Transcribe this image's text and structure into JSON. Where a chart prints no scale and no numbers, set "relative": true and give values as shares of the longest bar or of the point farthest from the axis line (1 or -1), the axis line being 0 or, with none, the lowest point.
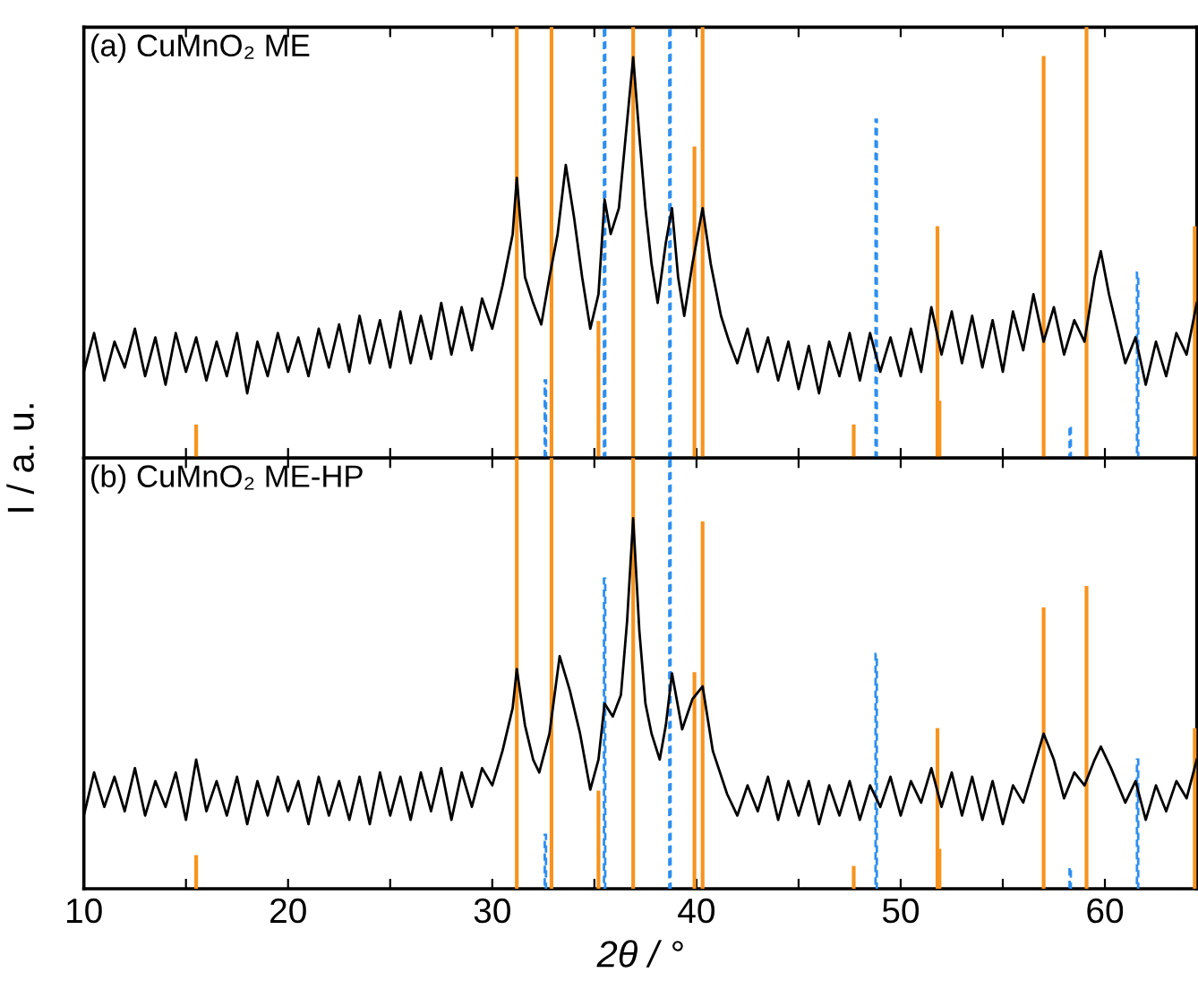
{
  "chart_data": [
    {
      "type": "line",
      "title": "(a) CuMnO₂ ME",
      "ylabel": "I / a. u.",
      "relative": true,
      "xlim": [
        10,
        64.5
      ],
      "xticks": [
        10,
        {
          "value": 15,
          "label": null
        },
        20,
        {
          "value": 25,
          "label": null
        },
        30,
        {
          "value": 35,
          "label": null
        },
        40,
        {
          "value": 45,
          "label": null
        },
        50,
        {
          "value": 55,
          "label": null
        },
        60
      ],
      "tick_labels": false,
      "grid": false,
      "legend": false,
      "series": [
        {
          "color": "#000000",
          "x": [
            10,
            10.5,
            11,
            11.5,
            12,
            12.5,
            13,
            13.5,
            14,
            14.5,
            15,
            15.5,
            16,
            16.5,
            17,
            17.5,
            18,
            18.5,
            19,
            19.5,
            20,
            20.5,
            21,
            21.5,
            22,
            22.5,
            23,
            23.5,
            24,
            24.5,
            25,
            25.5,
            26,
            26.5,
            27,
            27.5,
            28,
            28.5,
            29,
            29.5,
            30,
            30.5,
            31,
            31.2,
            31.6,
            32,
            32.4,
            32.8,
            33.2,
            33.6,
            34,
            34.4,
            34.8,
            35.2,
            35.5,
            35.8,
            36.2,
            36.6,
            36.9,
            37.2,
            37.5,
            37.8,
            38.1,
            38.5,
            38.8,
            39.1,
            39.4,
            39.8,
            40.3,
            40.7,
            41.2,
            41.6,
            42,
            42.5,
            43,
            43.5,
            44,
            44.5,
            45,
            45.5,
            46,
            46.5,
            47,
            47.5,
            48,
            48.5,
            49,
            49.5,
            50,
            50.5,
            51,
            51.5,
            52,
            52.5,
            53,
            53.5,
            54,
            54.5,
            55,
            55.5,
            56,
            56.5,
            57,
            57.5,
            58,
            58.5,
            59,
            59.5,
            59.8,
            60.2,
            60.6,
            61,
            61.5,
            62,
            62.5,
            63,
            63.5,
            64,
            64.5
          ],
          "values": [
            0.2,
            0.29,
            0.18,
            0.27,
            0.21,
            0.3,
            0.19,
            0.28,
            0.17,
            0.29,
            0.2,
            0.28,
            0.18,
            0.27,
            0.19,
            0.29,
            0.15,
            0.27,
            0.19,
            0.29,
            0.2,
            0.28,
            0.19,
            0.3,
            0.21,
            0.31,
            0.2,
            0.33,
            0.22,
            0.32,
            0.21,
            0.34,
            0.22,
            0.33,
            0.23,
            0.36,
            0.24,
            0.35,
            0.25,
            0.37,
            0.3,
            0.4,
            0.52,
            0.65,
            0.42,
            0.36,
            0.31,
            0.42,
            0.52,
            0.68,
            0.56,
            0.42,
            0.3,
            0.38,
            0.6,
            0.52,
            0.58,
            0.78,
            0.93,
            0.75,
            0.58,
            0.45,
            0.36,
            0.5,
            0.58,
            0.42,
            0.33,
            0.45,
            0.58,
            0.45,
            0.33,
            0.27,
            0.22,
            0.3,
            0.2,
            0.28,
            0.18,
            0.27,
            0.16,
            0.26,
            0.15,
            0.27,
            0.19,
            0.29,
            0.18,
            0.29,
            0.2,
            0.28,
            0.19,
            0.3,
            0.2,
            0.35,
            0.24,
            0.34,
            0.22,
            0.33,
            0.21,
            0.32,
            0.2,
            0.34,
            0.25,
            0.38,
            0.27,
            0.35,
            0.24,
            0.32,
            0.27,
            0.42,
            0.48,
            0.38,
            0.3,
            0.22,
            0.28,
            0.17,
            0.27,
            0.19,
            0.29,
            0.24,
            0.36
          ]
        },
        {
          "type": "bar",
          "color": "#f7931e",
          "line_style": "solid",
          "x": [
            15.5,
            31.2,
            32.9,
            35.2,
            36.9,
            39.9,
            40.3,
            47.7,
            51.8,
            51.9,
            57.0,
            59.1,
            64.4
          ],
          "values": [
            0.075,
            1,
            1,
            0.315,
            1,
            0.72,
            1,
            0.075,
            0.535,
            0.13,
            0.93,
            1,
            0.535
          ]
        },
        {
          "type": "bar",
          "color": "#2d8ff0",
          "line_style": "dashed",
          "x": [
            32.6,
            35.5,
            38.7,
            48.8,
            58.3,
            61.6
          ],
          "values": [
            0.18,
            1,
            1,
            0.785,
            0.075,
            0.43
          ]
        }
      ]
    },
    {
      "type": "line",
      "title": "(b) CuMnO₂ ME-HP",
      "xlabel": "2θ / °",
      "relative": true,
      "xlim": [
        10,
        64.5
      ],
      "xticks": [
        10,
        {
          "value": 15,
          "label": null
        },
        20,
        {
          "value": 25,
          "label": null
        },
        30,
        {
          "value": 35,
          "label": null
        },
        40,
        {
          "value": 45,
          "label": null
        },
        50,
        {
          "value": 55,
          "label": null
        },
        60
      ],
      "tick_labels": "x",
      "grid": false,
      "legend": false,
      "series": [
        {
          "color": "#000000",
          "x": [
            10,
            10.5,
            11,
            11.5,
            12,
            12.5,
            13,
            13.5,
            14,
            14.5,
            15,
            15.5,
            16,
            16.5,
            17,
            17.5,
            18,
            18.5,
            19,
            19.5,
            20,
            20.5,
            21,
            21.5,
            22,
            22.5,
            23,
            23.5,
            24,
            24.5,
            25,
            25.5,
            26,
            26.5,
            27,
            27.5,
            28,
            28.5,
            29,
            29.5,
            30,
            30.5,
            31,
            31.2,
            31.6,
            32,
            32.3,
            32.8,
            33.3,
            33.8,
            34.3,
            34.8,
            35.2,
            35.5,
            35.9,
            36.3,
            36.6,
            36.9,
            37.2,
            37.5,
            37.8,
            38.2,
            38.5,
            38.8,
            39.3,
            39.8,
            40.3,
            40.8,
            41.5,
            42,
            42.5,
            43,
            43.5,
            44,
            44.5,
            45,
            45.5,
            46,
            46.5,
            47,
            47.5,
            48,
            48.5,
            49,
            49.5,
            50,
            50.5,
            51,
            51.5,
            52,
            52.5,
            53,
            53.5,
            54,
            54.5,
            55,
            55.5,
            56,
            56.5,
            57,
            57.5,
            58,
            58.5,
            59,
            59.5,
            59.8,
            60.3,
            61,
            61.5,
            62,
            62.5,
            63,
            63.5,
            64,
            64.5
          ],
          "values": [
            0.17,
            0.27,
            0.19,
            0.26,
            0.18,
            0.28,
            0.17,
            0.25,
            0.19,
            0.27,
            0.16,
            0.3,
            0.18,
            0.25,
            0.17,
            0.26,
            0.15,
            0.25,
            0.17,
            0.26,
            0.18,
            0.25,
            0.15,
            0.26,
            0.17,
            0.25,
            0.16,
            0.26,
            0.15,
            0.27,
            0.17,
            0.26,
            0.16,
            0.27,
            0.18,
            0.28,
            0.16,
            0.27,
            0.19,
            0.28,
            0.24,
            0.32,
            0.42,
            0.51,
            0.38,
            0.3,
            0.27,
            0.36,
            0.54,
            0.46,
            0.36,
            0.23,
            0.3,
            0.43,
            0.4,
            0.45,
            0.62,
            0.86,
            0.6,
            0.43,
            0.36,
            0.3,
            0.38,
            0.5,
            0.37,
            0.44,
            0.47,
            0.32,
            0.22,
            0.17,
            0.24,
            0.18,
            0.26,
            0.16,
            0.25,
            0.17,
            0.25,
            0.15,
            0.24,
            0.17,
            0.25,
            0.16,
            0.24,
            0.19,
            0.26,
            0.17,
            0.25,
            0.2,
            0.28,
            0.19,
            0.27,
            0.17,
            0.26,
            0.16,
            0.25,
            0.15,
            0.24,
            0.2,
            0.28,
            0.36,
            0.3,
            0.21,
            0.27,
            0.24,
            0.3,
            0.33,
            0.28,
            0.2,
            0.25,
            0.16,
            0.24,
            0.18,
            0.25,
            0.21,
            0.3
          ]
        },
        {
          "type": "bar",
          "color": "#f7931e",
          "line_style": "solid",
          "x": [
            15.5,
            31.2,
            32.9,
            35.2,
            36.9,
            39.9,
            40.3,
            47.7,
            51.8,
            51.9,
            57.0,
            59.1,
            64.4
          ],
          "values": [
            0.075,
            1,
            1,
            0.225,
            1,
            0.5,
            0.85,
            0.05,
            0.37,
            0.09,
            0.65,
            0.7,
            0.37
          ]
        },
        {
          "type": "bar",
          "color": "#2d8ff0",
          "line_style": "dashed",
          "x": [
            32.6,
            35.5,
            38.7,
            48.8,
            58.3,
            61.6
          ],
          "values": [
            0.125,
            0.72,
            1,
            0.545,
            0.05,
            0.3
          ]
        }
      ]
    }
  ]
}
